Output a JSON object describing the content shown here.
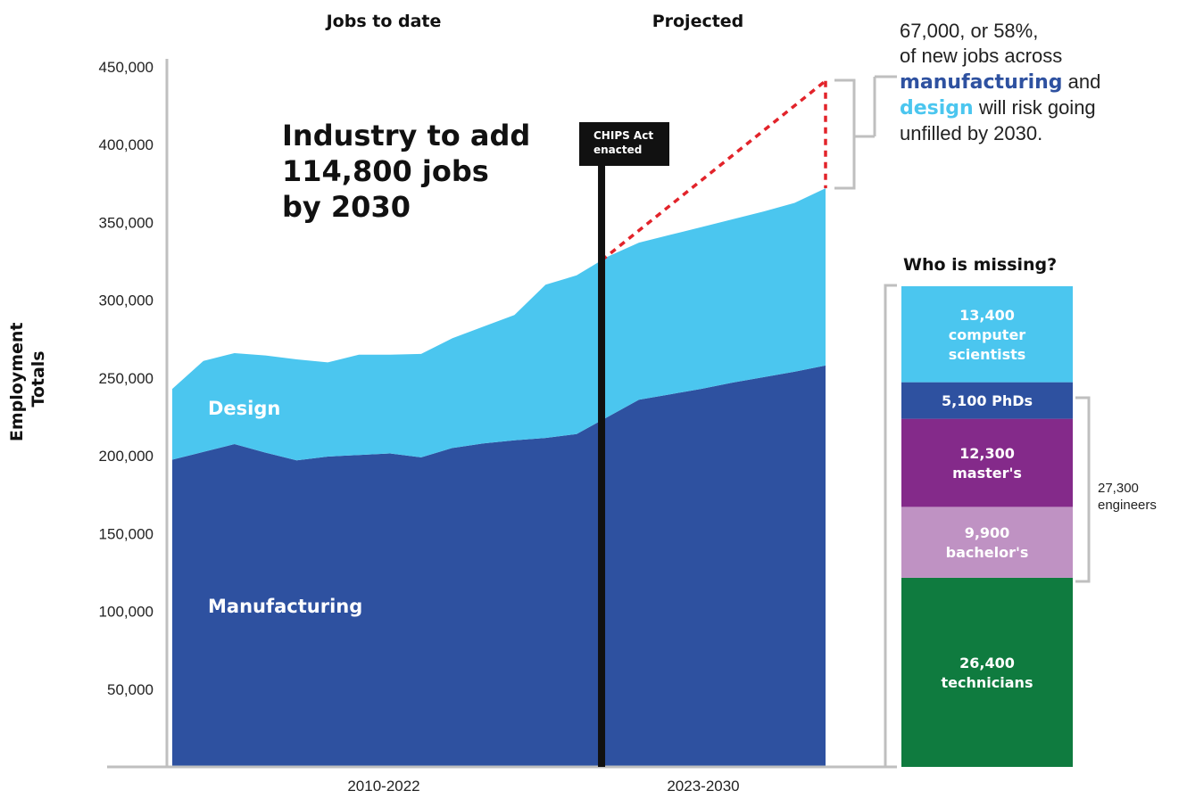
{
  "headers": {
    "left": "Jobs to date",
    "right": "Projected"
  },
  "headline": [
    "Industry to add",
    "114,800 jobs",
    "by 2030"
  ],
  "marker": {
    "label_line1": "CHIPS Act",
    "label_line2": "enacted"
  },
  "note": {
    "line1": "67,000, or 58%,",
    "line2": "of new jobs across",
    "word_manufacturing": "manufacturing",
    "word_and": "and",
    "word_design": "design",
    "word_rest": "will risk going",
    "line4": "unfilled by 2030."
  },
  "breakdown": {
    "title": "Who is missing?",
    "segments": [
      {
        "value": 26400,
        "lines": [
          "26,400",
          "technicians"
        ],
        "color": "#0f7b3f"
      },
      {
        "value": 9900,
        "lines": [
          "9,900",
          "bachelor's"
        ],
        "color": "#bf92c3"
      },
      {
        "value": 12300,
        "lines": [
          "12,300",
          "master's"
        ],
        "color": "#842a8a"
      },
      {
        "value": 5100,
        "lines": [
          "5,100 PhDs"
        ],
        "color": "#2e51a0"
      },
      {
        "value": 13400,
        "lines": [
          "13,400",
          "computer",
          "scientists"
        ],
        "color": "#4bc6ef"
      }
    ],
    "engineers_value": "27,300",
    "engineers_label": "engineers"
  },
  "chart_data": {
    "type": "area",
    "stacked": true,
    "ylabel": "Employment Totals",
    "ylim": [
      0,
      450000
    ],
    "yticks": [
      50000,
      100000,
      150000,
      200000,
      250000,
      300000,
      350000,
      400000,
      450000
    ],
    "ytick_labels": [
      "50,000",
      "100,000",
      "150,000",
      "200,000",
      "250,000",
      "300,000",
      "350,000",
      "400,000",
      "450,000"
    ],
    "x_period_labels": [
      "2010-2022",
      "2023-2030"
    ],
    "series_points": [
      0,
      1,
      2,
      3,
      4,
      5,
      6,
      7,
      8,
      9,
      10,
      11,
      12,
      13,
      14,
      15,
      16,
      17,
      18,
      19,
      20,
      21
    ],
    "series": [
      {
        "name": "Manufacturing",
        "color": "#2e51a0",
        "values": [
          197500,
          202500,
          207500,
          202000,
          197000,
          199500,
          200500,
          201500,
          199000,
          205000,
          208000,
          210000,
          211500,
          214000,
          225000,
          236000,
          239500,
          243000,
          247000,
          250500,
          254000,
          258000
        ]
      },
      {
        "name": "Design",
        "color": "#4bc6ef",
        "values": [
          45500,
          58500,
          58500,
          62500,
          65000,
          60500,
          64500,
          63500,
          66500,
          70500,
          75000,
          80500,
          98500,
          102000,
          103000,
          101000,
          102500,
          104000,
          105000,
          106500,
          108500,
          114000
        ]
      }
    ],
    "cumulative_totals": [
      243000,
      261000,
      266000,
      264500,
      262000,
      260000,
      265000,
      265000,
      265500,
      275500,
      283000,
      290500,
      310000,
      316000,
      328000,
      337000,
      342000,
      347000,
      352000,
      357000,
      362500,
      372000
    ],
    "chips_act_index": 13.8,
    "projection_total_at_end": 441000
  }
}
